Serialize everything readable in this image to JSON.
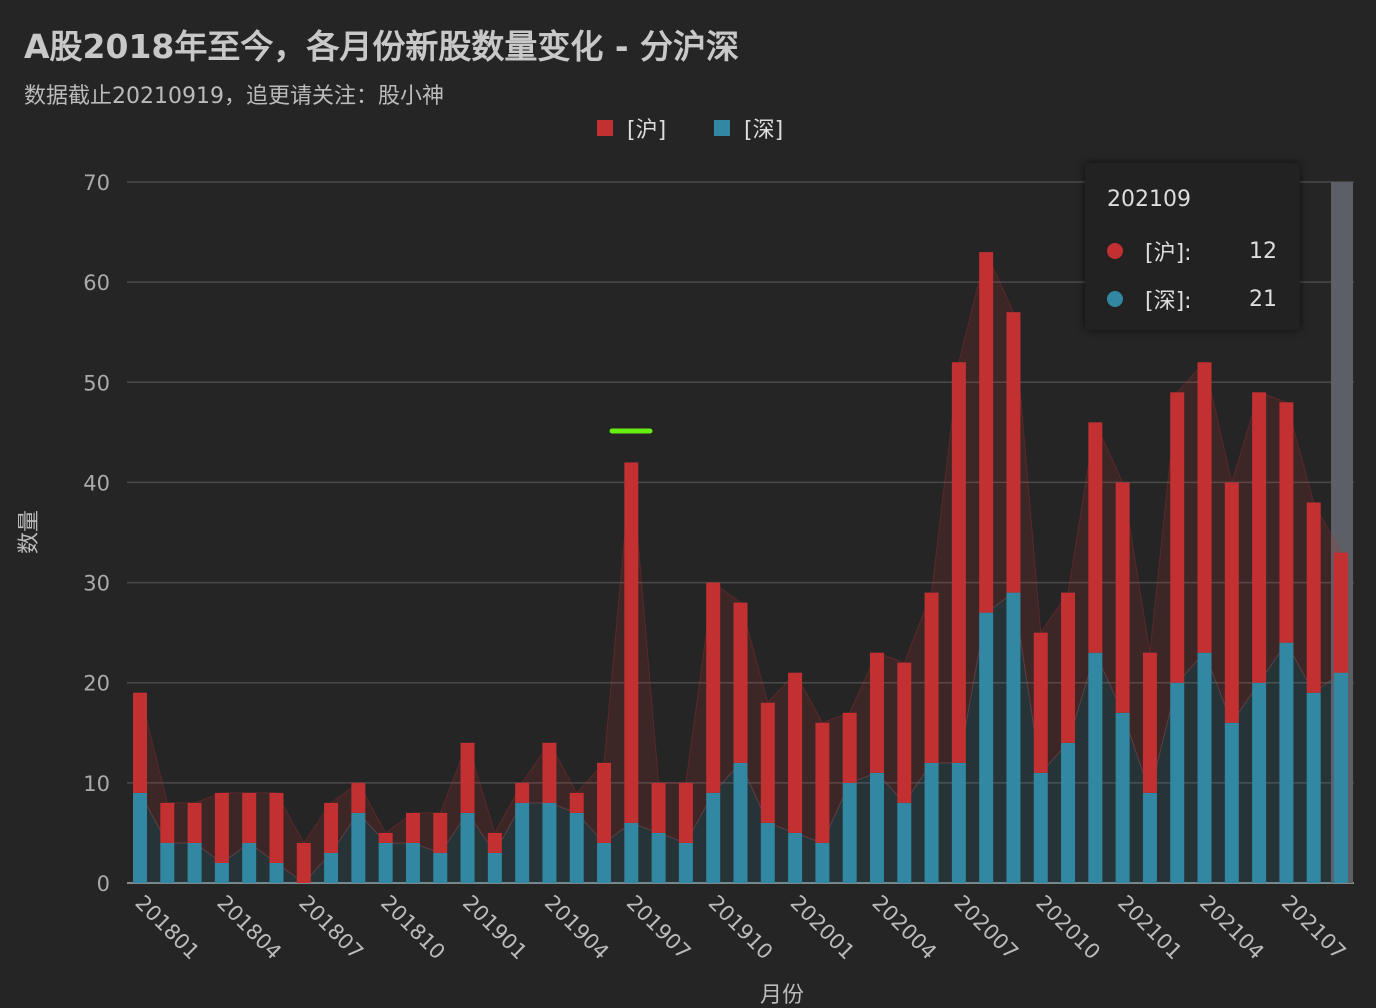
{
  "title": "A股2018年至今，各月份新股数量变化 - 分沪深",
  "subtitle": "数据截止20210919，追更请关注：股小神",
  "colors": {
    "sh": "#c23031",
    "sz": "#3287a3"
  },
  "tooltip": {
    "title": "202109",
    "rows": [
      {
        "label": "[沪]:",
        "value": "12"
      },
      {
        "label": "[深]:",
        "value": "21"
      }
    ]
  },
  "chart_data": {
    "type": "bar",
    "stacked": true,
    "title": "A股2018年至今，各月份新股数量变化 - 分沪深",
    "xlabel": "月份",
    "ylabel": "数量",
    "ylim": [
      0,
      70
    ],
    "yticks": [
      "0",
      "10",
      "20",
      "30",
      "40",
      "50",
      "60",
      "70"
    ],
    "legend": [
      "[沪]",
      "[深]"
    ],
    "legend_position": "top-center",
    "categories": [
      "201801",
      "201802",
      "201803",
      "201804",
      "201805",
      "201806",
      "201807",
      "201808",
      "201809",
      "201810",
      "201811",
      "201812",
      "201901",
      "201902",
      "201903",
      "201904",
      "201905",
      "201906",
      "201907",
      "201908",
      "201909",
      "201910",
      "201911",
      "201912",
      "202001",
      "202002",
      "202003",
      "202004",
      "202005",
      "202006",
      "202007",
      "202008",
      "202009",
      "202010",
      "202011",
      "202012",
      "202101",
      "202102",
      "202103",
      "202104",
      "202105",
      "202106",
      "202107",
      "202108",
      "202109"
    ],
    "series": [
      {
        "name": "[深]",
        "values": [
          9,
          4,
          4,
          2,
          4,
          2,
          0,
          3,
          7,
          4,
          4,
          3,
          7,
          3,
          8,
          8,
          7,
          4,
          6,
          5,
          4,
          9,
          12,
          6,
          5,
          4,
          10,
          11,
          8,
          12,
          12,
          27,
          29,
          11,
          14,
          23,
          17,
          9,
          20,
          23,
          16,
          20,
          24,
          19,
          21
        ]
      },
      {
        "name": "[沪]",
        "values": [
          10,
          4,
          4,
          7,
          5,
          7,
          4,
          5,
          3,
          1,
          3,
          4,
          7,
          2,
          2,
          6,
          2,
          8,
          36,
          5,
          6,
          21,
          16,
          12,
          16,
          12,
          7,
          12,
          14,
          17,
          40,
          36,
          28,
          14,
          15,
          23,
          23,
          14,
          29,
          29,
          24,
          29,
          24,
          19,
          12
        ]
      }
    ]
  }
}
